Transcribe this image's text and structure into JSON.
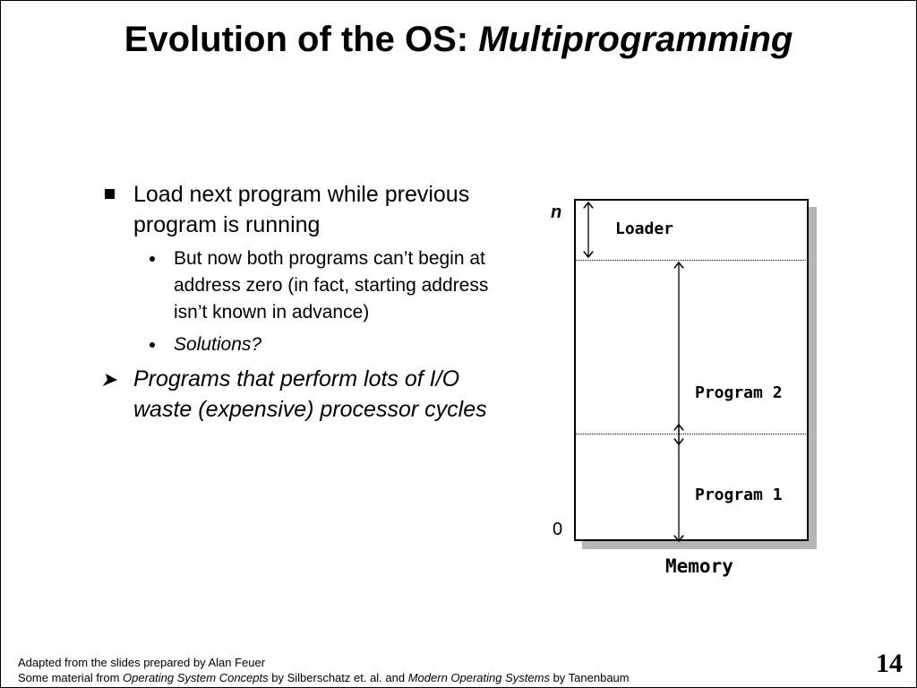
{
  "slide": {
    "title_plain": "Evolution of the OS: ",
    "title_italic": "Multiprogramming",
    "page_number": "14"
  },
  "bullets": [
    {
      "text": "Load next program while previous program is running",
      "subitems": [
        "But now both programs can’t begin at address zero (in fact, starting address isn’t known in advance)",
        "Solutions?"
      ]
    },
    {
      "text": "Programs that perform lots of I/O waste (expensive) processor cycles"
    }
  ],
  "diagram": {
    "top_label": "n",
    "bottom_label": "0",
    "regions": [
      "Loader",
      "Program 2",
      "Program 1"
    ],
    "caption": "Memory"
  },
  "footer": {
    "line1": "Adapted from the slides prepared by Alan Feuer",
    "line2_prefix": "Some material from ",
    "book1": "Operating System Concepts",
    "line2_middle": " by Silberschatz et. al. and ",
    "book2": "Modern Operating Systems",
    "line2_suffix": " by Tanenbaum"
  }
}
